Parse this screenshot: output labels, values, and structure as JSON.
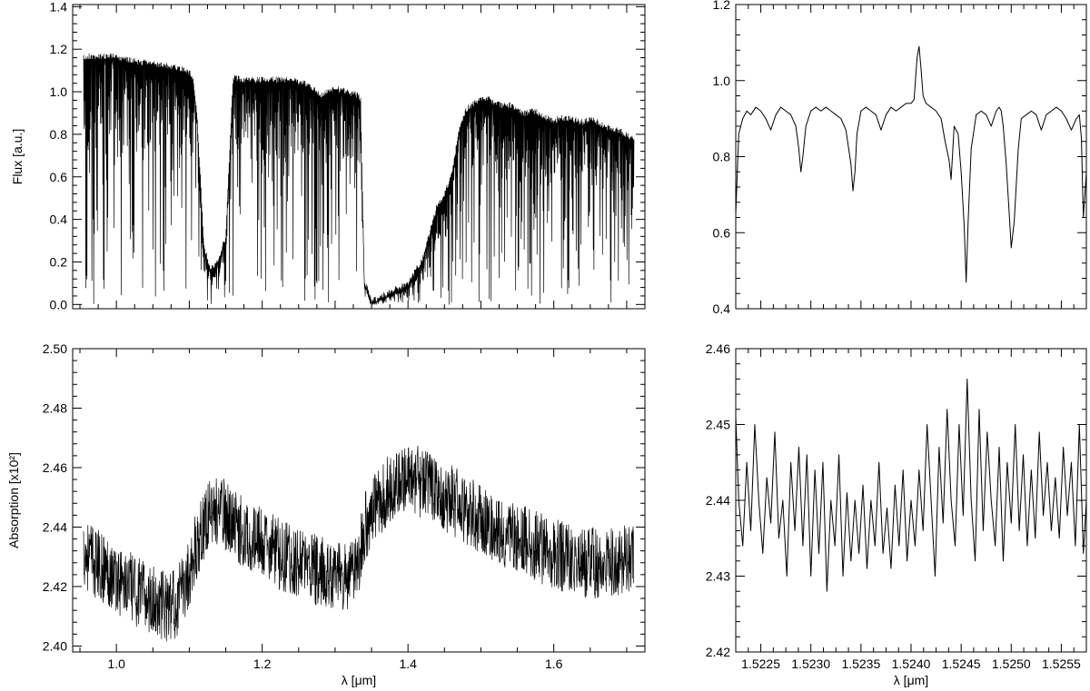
{
  "chart_data": [
    {
      "id": "top-left",
      "type": "line",
      "title": "",
      "xlabel": "",
      "ylabel": "Flux [a.u.]",
      "xlim": [
        0.94,
        1.725
      ],
      "ylim": [
        -0.02,
        1.41
      ],
      "x_ticks": [],
      "x_tick_labels": [],
      "y_ticks": [
        0.0,
        0.2,
        0.4,
        0.6,
        0.8,
        1.0,
        1.2,
        1.4
      ],
      "y_tick_labels": [
        "0.0",
        "0.2",
        "0.4",
        "0.6",
        "0.8",
        "1.0",
        "1.2",
        "1.4"
      ],
      "grid": false,
      "line_color": "#000000",
      "series": [
        {
          "x": [
            0.955,
            0.965,
            0.98,
            1.0,
            1.02,
            1.04,
            1.06,
            1.08,
            1.1,
            1.105,
            1.11,
            1.115,
            1.12,
            1.13,
            1.14,
            1.15,
            1.16,
            1.18,
            1.2,
            1.22,
            1.24,
            1.25,
            1.26,
            1.27,
            1.28,
            1.29,
            1.3,
            1.31,
            1.32,
            1.33,
            1.335,
            1.34,
            1.35,
            1.36,
            1.38,
            1.4,
            1.42,
            1.44,
            1.45,
            1.46,
            1.47,
            1.48,
            1.49,
            1.5,
            1.51,
            1.52,
            1.53,
            1.54,
            1.55,
            1.56,
            1.57,
            1.58,
            1.59,
            1.6,
            1.61,
            1.62,
            1.63,
            1.64,
            1.65,
            1.66,
            1.67,
            1.68,
            1.69,
            1.7,
            1.71
          ],
          "y": [
            1.15,
            1.15,
            1.15,
            1.15,
            1.13,
            1.12,
            1.11,
            1.1,
            1.08,
            1.05,
            0.9,
            0.6,
            0.25,
            0.15,
            0.2,
            0.3,
            1.05,
            1.04,
            1.04,
            1.04,
            1.04,
            1.03,
            1.02,
            1.0,
            0.97,
            0.99,
            1.0,
            0.99,
            0.98,
            0.97,
            0.95,
            0.1,
            0.0,
            0.02,
            0.05,
            0.08,
            0.2,
            0.45,
            0.5,
            0.6,
            0.8,
            0.9,
            0.93,
            0.95,
            0.95,
            0.93,
            0.92,
            0.92,
            0.9,
            0.88,
            0.9,
            0.88,
            0.86,
            0.85,
            0.86,
            0.86,
            0.85,
            0.84,
            0.86,
            0.84,
            0.82,
            0.81,
            0.8,
            0.78,
            0.76
          ]
        }
      ]
    },
    {
      "id": "top-right",
      "type": "line",
      "title": "",
      "xlabel": "",
      "ylabel": "",
      "xlim": [
        1.52225,
        1.52575
      ],
      "ylim": [
        0.4,
        1.2
      ],
      "x_ticks": [],
      "x_tick_labels": [],
      "y_ticks": [
        0.4,
        0.6,
        0.8,
        1.0,
        1.2
      ],
      "y_tick_labels": [
        "0.4",
        "0.6",
        "0.8",
        "1.0",
        "1.2"
      ],
      "grid": false,
      "line_color": "#000000",
      "series": [
        {
          "x": [
            1.52225,
            1.52228,
            1.52232,
            1.52236,
            1.5224,
            1.52245,
            1.5225,
            1.52255,
            1.5226,
            1.52265,
            1.5227,
            1.52275,
            1.5228,
            1.52285,
            1.52288,
            1.5229,
            1.52292,
            1.52295,
            1.523,
            1.52305,
            1.5231,
            1.52315,
            1.5232,
            1.52325,
            1.5233,
            1.52335,
            1.5234,
            1.52342,
            1.52344,
            1.52346,
            1.5235,
            1.52355,
            1.5236,
            1.52365,
            1.5237,
            1.52375,
            1.5238,
            1.52385,
            1.5239,
            1.52395,
            1.524,
            1.52403,
            1.52406,
            1.52408,
            1.5241,
            1.52412,
            1.52415,
            1.5242,
            1.52425,
            1.5243,
            1.52434,
            1.52438,
            1.5244,
            1.52443,
            1.52447,
            1.5245,
            1.52453,
            1.52455,
            1.52457,
            1.5246,
            1.52465,
            1.5247,
            1.52475,
            1.5248,
            1.52485,
            1.52488,
            1.5249,
            1.52492,
            1.52495,
            1.52498,
            1.525,
            1.52503,
            1.52507,
            1.5251,
            1.52515,
            1.5252,
            1.52525,
            1.5253,
            1.52535,
            1.5254,
            1.52545,
            1.5255,
            1.52555,
            1.5256,
            1.52565,
            1.52568,
            1.5257,
            1.52572,
            1.52575
          ],
          "y": [
            0.65,
            0.86,
            0.9,
            0.92,
            0.91,
            0.93,
            0.92,
            0.9,
            0.87,
            0.91,
            0.93,
            0.92,
            0.91,
            0.88,
            0.82,
            0.76,
            0.8,
            0.88,
            0.92,
            0.93,
            0.92,
            0.93,
            0.92,
            0.91,
            0.9,
            0.87,
            0.78,
            0.71,
            0.76,
            0.86,
            0.92,
            0.93,
            0.92,
            0.91,
            0.87,
            0.91,
            0.93,
            0.92,
            0.93,
            0.94,
            0.94,
            0.95,
            1.06,
            1.09,
            1.03,
            0.96,
            0.94,
            0.93,
            0.92,
            0.9,
            0.84,
            0.79,
            0.74,
            0.88,
            0.86,
            0.76,
            0.62,
            0.47,
            0.63,
            0.82,
            0.91,
            0.92,
            0.91,
            0.88,
            0.92,
            0.93,
            0.92,
            0.88,
            0.78,
            0.65,
            0.56,
            0.63,
            0.82,
            0.9,
            0.91,
            0.92,
            0.91,
            0.87,
            0.91,
            0.92,
            0.93,
            0.92,
            0.9,
            0.87,
            0.9,
            0.91,
            0.85,
            0.64,
            0.76
          ]
        }
      ]
    },
    {
      "id": "bottom-left",
      "type": "line",
      "title": "",
      "xlabel": "λ [μm]",
      "ylabel": "Absorption [x10²]",
      "xlim": [
        0.94,
        1.725
      ],
      "ylim": [
        2.398,
        2.5
      ],
      "x_ticks": [
        1.0,
        1.2,
        1.4,
        1.6
      ],
      "x_tick_labels": [
        "1.0",
        "1.2",
        "1.4",
        "1.6"
      ],
      "y_ticks": [
        2.4,
        2.42,
        2.44,
        2.46,
        2.48,
        2.5
      ],
      "y_tick_labels": [
        "2.40",
        "2.42",
        "2.44",
        "2.46",
        "2.48",
        "2.50"
      ],
      "grid": false,
      "line_color": "#000000",
      "series": [
        {
          "x": [
            0.955,
            0.97,
            0.99,
            1.01,
            1.03,
            1.05,
            1.07,
            1.085,
            1.1,
            1.115,
            1.13,
            1.15,
            1.17,
            1.19,
            1.21,
            1.23,
            1.25,
            1.27,
            1.29,
            1.31,
            1.32,
            1.33,
            1.335,
            1.34,
            1.36,
            1.38,
            1.4,
            1.42,
            1.44,
            1.46,
            1.48,
            1.5,
            1.52,
            1.54,
            1.56,
            1.58,
            1.6,
            1.62,
            1.64,
            1.66,
            1.68,
            1.7,
            1.71
          ],
          "y": [
            2.432,
            2.428,
            2.425,
            2.421,
            2.418,
            2.415,
            2.413,
            2.415,
            2.425,
            2.438,
            2.446,
            2.444,
            2.439,
            2.436,
            2.433,
            2.43,
            2.428,
            2.426,
            2.424,
            2.423,
            2.424,
            2.427,
            2.432,
            2.44,
            2.449,
            2.454,
            2.456,
            2.455,
            2.452,
            2.449,
            2.446,
            2.443,
            2.44,
            2.437,
            2.435,
            2.433,
            2.431,
            2.429,
            2.428,
            2.428,
            2.428,
            2.43,
            2.431
          ]
        }
      ]
    },
    {
      "id": "bottom-right",
      "type": "line",
      "title": "",
      "xlabel": "λ [μm]",
      "ylabel": "",
      "xlim": [
        1.52225,
        1.52575
      ],
      "ylim": [
        2.42,
        2.46
      ],
      "x_ticks": [
        1.5225,
        1.523,
        1.5235,
        1.524,
        1.5245,
        1.525,
        1.5255
      ],
      "x_tick_labels": [
        "1.5225",
        "1.5230",
        "1.5235",
        "1.5240",
        "1.5245",
        "1.5250",
        "1.5255"
      ],
      "y_ticks": [
        2.42,
        2.43,
        2.44,
        2.45,
        2.46
      ],
      "y_tick_labels": [
        "2.42",
        "2.43",
        "2.44",
        "2.45",
        "2.46"
      ],
      "grid": false,
      "line_color": "#000000",
      "series": [
        {
          "x": [
            1.52225,
            1.52228,
            1.52232,
            1.52236,
            1.5224,
            1.52244,
            1.52248,
            1.52252,
            1.52256,
            1.5226,
            1.52264,
            1.52268,
            1.52272,
            1.52276,
            1.5228,
            1.52284,
            1.52288,
            1.52292,
            1.52296,
            1.523,
            1.52304,
            1.52308,
            1.52312,
            1.52316,
            1.5232,
            1.52324,
            1.52328,
            1.52332,
            1.52336,
            1.5234,
            1.52344,
            1.52348,
            1.52352,
            1.52356,
            1.5236,
            1.52364,
            1.52368,
            1.52372,
            1.52376,
            1.5238,
            1.52384,
            1.52388,
            1.52392,
            1.52396,
            1.524,
            1.52404,
            1.52408,
            1.52412,
            1.52416,
            1.5242,
            1.52424,
            1.52428,
            1.52432,
            1.52436,
            1.5244,
            1.52444,
            1.52448,
            1.52452,
            1.52456,
            1.5246,
            1.52464,
            1.52468,
            1.52472,
            1.52476,
            1.5248,
            1.52484,
            1.52488,
            1.52492,
            1.52496,
            1.525,
            1.52504,
            1.52508,
            1.52512,
            1.52516,
            1.5252,
            1.52524,
            1.52528,
            1.52532,
            1.52536,
            1.5254,
            1.52544,
            1.52548,
            1.52552,
            1.52556,
            1.5256,
            1.52564,
            1.52568,
            1.52572,
            1.52575
          ],
          "y": [
            2.451,
            2.44,
            2.434,
            2.445,
            2.436,
            2.45,
            2.44,
            2.433,
            2.443,
            2.437,
            2.449,
            2.435,
            2.44,
            2.43,
            2.445,
            2.436,
            2.447,
            2.434,
            2.446,
            2.43,
            2.444,
            2.433,
            2.445,
            2.428,
            2.44,
            2.434,
            2.446,
            2.43,
            2.441,
            2.432,
            2.44,
            2.433,
            2.442,
            2.431,
            2.44,
            2.434,
            2.445,
            2.433,
            2.439,
            2.431,
            2.442,
            2.434,
            2.444,
            2.432,
            2.44,
            2.434,
            2.444,
            2.436,
            2.45,
            2.44,
            2.43,
            2.447,
            2.437,
            2.452,
            2.44,
            2.434,
            2.45,
            2.438,
            2.456,
            2.44,
            2.432,
            2.452,
            2.436,
            2.449,
            2.44,
            2.434,
            2.447,
            2.432,
            2.445,
            2.437,
            2.45,
            2.436,
            2.446,
            2.434,
            2.444,
            2.435,
            2.449,
            2.438,
            2.445,
            2.436,
            2.443,
            2.435,
            2.447,
            2.438,
            2.445,
            2.434,
            2.45,
            2.433,
            2.44
          ]
        }
      ]
    }
  ]
}
